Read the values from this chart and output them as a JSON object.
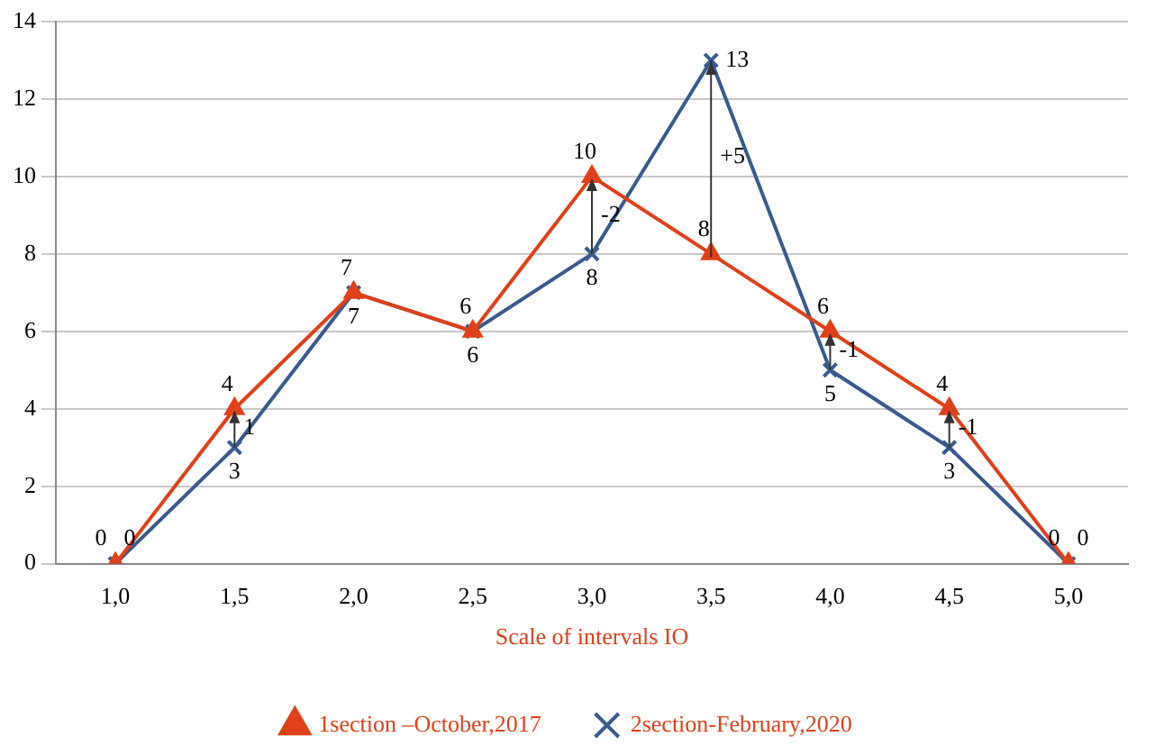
{
  "chart_data": {
    "type": "line",
    "xlabel": "Scale of intervals IO",
    "categories": [
      "1,0",
      "1,5",
      "2,0",
      "2,5",
      "3,0",
      "3,5",
      "4,0",
      "4,5",
      "5,0"
    ],
    "series": [
      {
        "name": "1section –October,2017",
        "color": "#e0401a",
        "marker": "triangle",
        "values": [
          0,
          4,
          7,
          6,
          10,
          8,
          6,
          4,
          0
        ]
      },
      {
        "name": "2section-February,2020",
        "color": "#3a5a8c",
        "marker": "cross",
        "values": [
          0,
          3,
          7,
          6,
          8,
          13,
          5,
          3,
          0
        ]
      }
    ],
    "ylim": [
      0,
      14
    ],
    "yticks": [
      0,
      2,
      4,
      6,
      8,
      10,
      12,
      14
    ],
    "grid": "y",
    "legend": "bottom",
    "data_labels": true,
    "annotations": [
      "1",
      "-2",
      "+5",
      "-1",
      "-1"
    ]
  }
}
